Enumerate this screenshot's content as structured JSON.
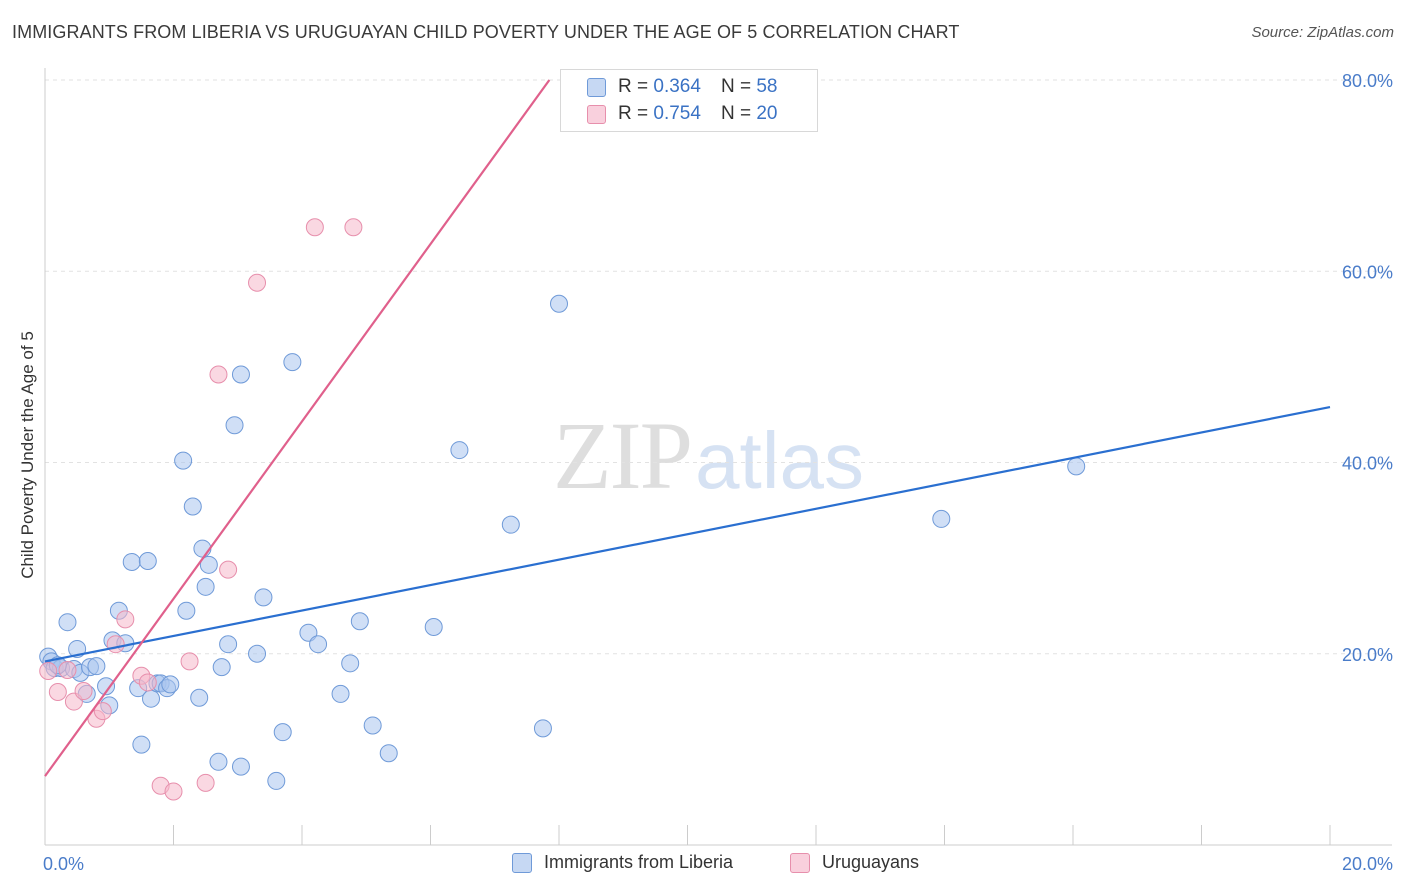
{
  "chart_data": {
    "type": "scatter",
    "title": "IMMIGRANTS FROM LIBERIA VS URUGUAYAN CHILD POVERTY UNDER THE AGE OF 5 CORRELATION CHART",
    "source": "Source: ZipAtlas.com",
    "ylabel": "Child Poverty Under the Age of 5",
    "xlabel": "",
    "xlim": [
      0,
      20
    ],
    "ylim": [
      0,
      80
    ],
    "x_tick_labels": [
      {
        "value": 0,
        "label": "0.0%"
      },
      {
        "value": 20,
        "label": "20.0%"
      }
    ],
    "y_tick_labels": [
      {
        "value": 20,
        "label": "20.0%"
      },
      {
        "value": 40,
        "label": "40.0%"
      },
      {
        "value": 60,
        "label": "60.0%"
      },
      {
        "value": 80,
        "label": "80.0%"
      }
    ],
    "grid": true,
    "watermark": {
      "zip": "ZIP",
      "atlas": "atlas"
    },
    "series": [
      {
        "name": "Immigrants from Liberia",
        "color": "#a9c4ee",
        "stroke": "#6f9ad8",
        "line_color": "#2a6fd0",
        "R": "0.364",
        "N": "58",
        "trend": {
          "x0": 0,
          "y0": 19.2,
          "x1": 20,
          "y1": 45.8
        },
        "points": [
          [
            0.05,
            19.7
          ],
          [
            0.1,
            19.2
          ],
          [
            0.15,
            18.5
          ],
          [
            0.25,
            18.5
          ],
          [
            0.35,
            23.3
          ],
          [
            0.45,
            18.4
          ],
          [
            0.5,
            20.5
          ],
          [
            0.55,
            18.0
          ],
          [
            0.7,
            18.6
          ],
          [
            0.8,
            18.7
          ],
          [
            0.65,
            15.8
          ],
          [
            0.95,
            16.6
          ],
          [
            1.0,
            14.6
          ],
          [
            1.05,
            21.4
          ],
          [
            1.15,
            24.5
          ],
          [
            1.25,
            21.1
          ],
          [
            1.35,
            29.6
          ],
          [
            1.45,
            16.4
          ],
          [
            1.5,
            10.5
          ],
          [
            1.6,
            29.7
          ],
          [
            1.65,
            15.3
          ],
          [
            1.75,
            16.9
          ],
          [
            1.8,
            16.9
          ],
          [
            1.9,
            16.4
          ],
          [
            1.95,
            16.8
          ],
          [
            2.15,
            40.2
          ],
          [
            2.2,
            24.5
          ],
          [
            2.3,
            35.4
          ],
          [
            2.4,
            15.4
          ],
          [
            2.45,
            31.0
          ],
          [
            2.5,
            27.0
          ],
          [
            2.55,
            29.3
          ],
          [
            2.7,
            8.7
          ],
          [
            2.75,
            18.6
          ],
          [
            2.85,
            21.0
          ],
          [
            2.95,
            43.9
          ],
          [
            3.05,
            8.2
          ],
          [
            3.05,
            49.2
          ],
          [
            3.3,
            20.0
          ],
          [
            3.4,
            25.9
          ],
          [
            3.6,
            6.7
          ],
          [
            3.7,
            11.8
          ],
          [
            3.85,
            50.5
          ],
          [
            4.1,
            22.2
          ],
          [
            4.25,
            21.0
          ],
          [
            4.6,
            15.8
          ],
          [
            4.75,
            19.0
          ],
          [
            4.9,
            23.4
          ],
          [
            5.1,
            12.5
          ],
          [
            5.35,
            9.6
          ],
          [
            6.05,
            22.8
          ],
          [
            6.45,
            41.3
          ],
          [
            7.25,
            33.5
          ],
          [
            7.75,
            12.2
          ],
          [
            8.0,
            56.6
          ],
          [
            13.95,
            34.1
          ],
          [
            16.05,
            39.6
          ],
          [
            0.2,
            18.8
          ]
        ]
      },
      {
        "name": "Uruguayans",
        "color": "#f6b8cb",
        "stroke": "#e78fac",
        "line_color": "#e0608c",
        "R": "0.754",
        "N": "20",
        "trend": {
          "x0": 0,
          "y0": 7.2,
          "x1": 7.85,
          "y1": 80.0
        },
        "points": [
          [
            0.05,
            18.2
          ],
          [
            0.2,
            16.0
          ],
          [
            0.35,
            18.3
          ],
          [
            0.45,
            15.0
          ],
          [
            0.6,
            16.1
          ],
          [
            0.8,
            13.2
          ],
          [
            0.9,
            14.0
          ],
          [
            1.1,
            21.0
          ],
          [
            1.25,
            23.6
          ],
          [
            1.5,
            17.7
          ],
          [
            1.6,
            17.0
          ],
          [
            1.8,
            6.2
          ],
          [
            2.0,
            5.6
          ],
          [
            2.25,
            19.2
          ],
          [
            2.5,
            6.5
          ],
          [
            2.7,
            49.2
          ],
          [
            2.85,
            28.8
          ],
          [
            3.3,
            58.8
          ],
          [
            4.2,
            64.6
          ],
          [
            4.8,
            64.6
          ]
        ]
      }
    ]
  },
  "legend_top": {
    "r_label": "R =",
    "n_label": "N ="
  }
}
